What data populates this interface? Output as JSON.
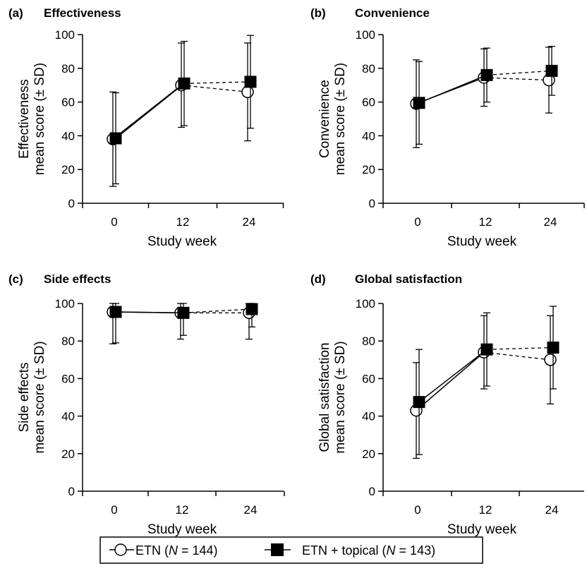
{
  "legend": {
    "etn_prefix": "ETN (",
    "etn_n": "N",
    "etn_suffix": " = 144)",
    "topical_prefix": "ETN + topical (",
    "topical_n": "N",
    "topical_suffix": " = 143)"
  },
  "chart_data": [
    {
      "type": "line",
      "panel": "(a)",
      "title": "Effectiveness",
      "ylabel": [
        "Effectiveness",
        "mean score (± SD)"
      ],
      "xlabel": "Study week",
      "x": [
        0,
        12,
        24
      ],
      "x_ticks": [
        "0",
        "12",
        "24"
      ],
      "ylim": [
        0,
        100
      ],
      "y_ticks": [
        0,
        20,
        40,
        60,
        80,
        100
      ],
      "series": [
        {
          "name": "ETN (N = 144)",
          "marker": "open-circle",
          "values": [
            38,
            70,
            66
          ],
          "sd": [
            28,
            25,
            29
          ]
        },
        {
          "name": "ETN + topical (N = 143)",
          "marker": "filled-square",
          "values": [
            38.5,
            71,
            72
          ],
          "sd": [
            27,
            25,
            27.5
          ]
        }
      ]
    },
    {
      "type": "line",
      "panel": "(b)",
      "title": "Convenience",
      "ylabel": [
        "Convenience",
        "mean score (± SD)"
      ],
      "xlabel": "Study week",
      "x": [
        0,
        12,
        24
      ],
      "x_ticks": [
        "0",
        "12",
        "24"
      ],
      "ylim": [
        0,
        100
      ],
      "y_ticks": [
        0,
        20,
        40,
        60,
        80,
        100
      ],
      "series": [
        {
          "name": "ETN (N = 144)",
          "marker": "open-circle",
          "values": [
            59,
            74.5,
            73
          ],
          "sd": [
            26,
            17,
            19.5
          ]
        },
        {
          "name": "ETN + topical (N = 143)",
          "marker": "filled-square",
          "values": [
            59.5,
            76,
            78.5
          ],
          "sd": [
            24.5,
            16,
            14.5
          ]
        }
      ]
    },
    {
      "type": "line",
      "panel": "(c)",
      "title": "Side effects",
      "ylabel": [
        "Side effects",
        "mean score (± SD)"
      ],
      "xlabel": "Study week",
      "x": [
        0,
        12,
        24
      ],
      "x_ticks": [
        "0",
        "12",
        "24"
      ],
      "ylim": [
        0,
        100
      ],
      "y_ticks": [
        0,
        20,
        40,
        60,
        80,
        100
      ],
      "series": [
        {
          "name": "ETN (N = 144)",
          "marker": "open-circle",
          "values": [
            95.5,
            95,
            95
          ],
          "sd": [
            17,
            14,
            14
          ]
        },
        {
          "name": "ETN + topical (N = 143)",
          "marker": "filled-square",
          "values": [
            95.5,
            95,
            97
          ],
          "sd": [
            16.5,
            12,
            9.5
          ]
        }
      ]
    },
    {
      "type": "line",
      "panel": "(d)",
      "title": "Global satisfaction",
      "ylabel": [
        "Global satisfaction",
        "mean score (± SD)"
      ],
      "xlabel": "Study week",
      "x": [
        0,
        12,
        24
      ],
      "x_ticks": [
        "0",
        "12",
        "24"
      ],
      "ylim": [
        0,
        100
      ],
      "y_ticks": [
        0,
        20,
        40,
        60,
        80,
        100
      ],
      "series": [
        {
          "name": "ETN (N = 144)",
          "marker": "open-circle",
          "values": [
            43,
            74,
            70
          ],
          "sd": [
            25.5,
            19.5,
            23.5
          ]
        },
        {
          "name": "ETN + topical (N = 143)",
          "marker": "filled-square",
          "values": [
            47.5,
            75.5,
            76.5
          ],
          "sd": [
            28,
            19.5,
            22
          ]
        }
      ]
    }
  ]
}
